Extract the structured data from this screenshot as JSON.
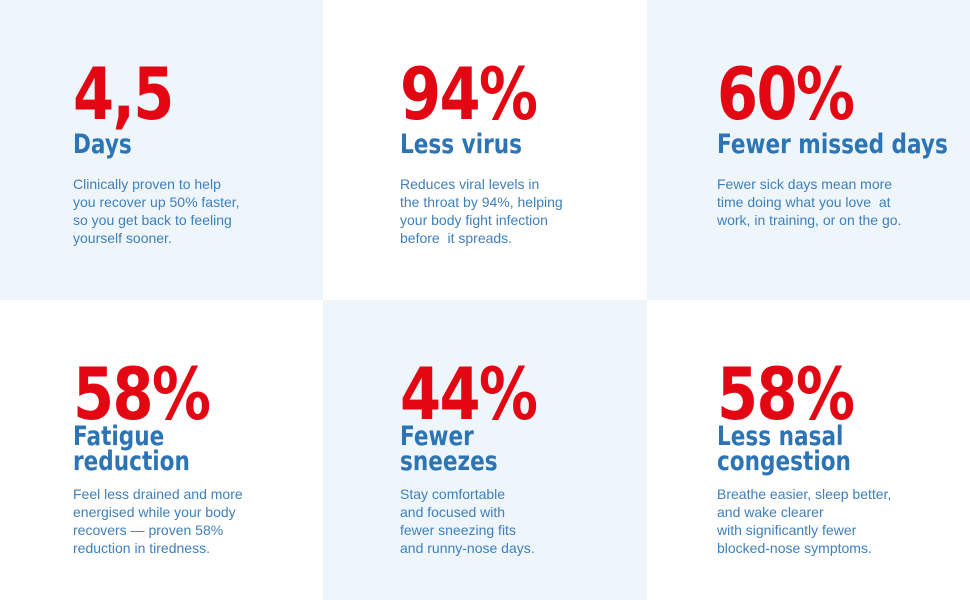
{
  "colors": {
    "stat_red": "#e30613",
    "label_blue": "#2d74b5",
    "text_blue": "#3f7fb9",
    "shade_bg": "#eef6fc"
  },
  "cards": [
    {
      "stat": "4,5",
      "label": [
        "Days"
      ],
      "desc": [
        "Clinically proven to help",
        "you recover up 50% faster,",
        "so you get back to feeling",
        "yourself sooner."
      ]
    },
    {
      "stat": "94%",
      "label": [
        "Less virus"
      ],
      "desc": [
        "Reduces viral levels in",
        "the throat by 94%, helping",
        "your body fight infection",
        "before  it spreads."
      ]
    },
    {
      "stat": "60%",
      "label": [
        "Fewer missed days"
      ],
      "desc": [
        "Fewer sick days mean more",
        "time doing what you love  at",
        "work, in training, or on the go."
      ]
    },
    {
      "stat": "58%",
      "label": [
        "Fatigue",
        "reduction"
      ],
      "desc": [
        "Feel less drained and more",
        "energised while your body",
        "recovers — proven 58%",
        "reduction in tiredness."
      ]
    },
    {
      "stat": "44%",
      "label": [
        "Fewer",
        "sneezes"
      ],
      "desc": [
        "Stay comfortable",
        "and focused with",
        "fewer sneezing fits",
        "and runny-nose days."
      ]
    },
    {
      "stat": "58%",
      "label": [
        "Less nasal",
        "congestion"
      ],
      "desc": [
        "Breathe easier, sleep better,",
        "and wake clearer",
        "with significantly fewer",
        "blocked-nose symptoms."
      ]
    }
  ]
}
